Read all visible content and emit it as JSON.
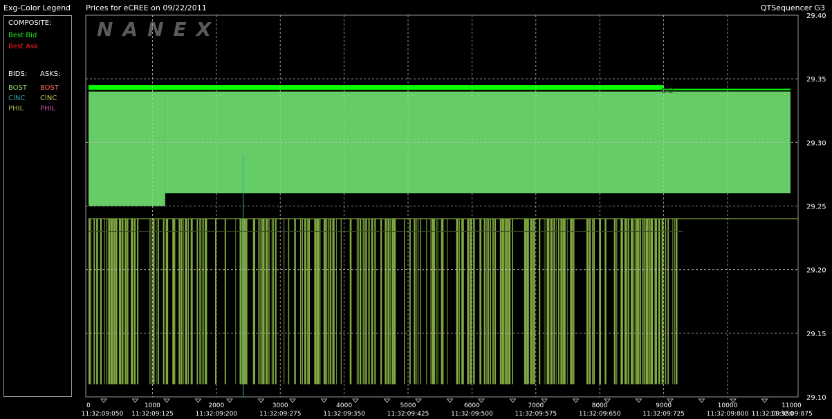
{
  "header": {
    "legend_title": "Exg-Color Legend",
    "chart_title": "Prices for  eCREE  on  09/22/2011",
    "app_name": "QTSequencer G3"
  },
  "watermark": "NANEX",
  "legend": {
    "composite_label": "COMPOSITE:",
    "best_bid": {
      "label": "Best Bid",
      "color": "#22ee22"
    },
    "best_ask": {
      "label": "Best Ask",
      "color": "#ff2020"
    },
    "bids_label": "BIDS:",
    "asks_label": "ASKS:",
    "bids": [
      {
        "label": "BOST",
        "color": "#9fd86c"
      },
      {
        "label": "CINC",
        "color": "#2aa6a6"
      },
      {
        "label": "PHIL",
        "color": "#a8b84c"
      }
    ],
    "asks": [
      {
        "label": "BOST",
        "color": "#ff7060"
      },
      {
        "label": "CINC",
        "color": "#c8c050"
      },
      {
        "label": "PHIL",
        "color": "#d050a0"
      }
    ]
  },
  "chart_data": {
    "type": "area",
    "x_range": [
      0,
      11000
    ],
    "y_range": [
      29.1,
      29.4
    ],
    "y_ticks": [
      "29.40",
      "29.35",
      "29.30",
      "29.25",
      "29.20",
      "29.15",
      "29.10"
    ],
    "x_ticks": [
      {
        "value": 0,
        "label": "0",
        "time": "11:32:09:050"
      },
      {
        "value": 1000,
        "label": "1000",
        "time": "11:32:09:125"
      },
      {
        "value": 2000,
        "label": "2000",
        "time": "11:32:09:200"
      },
      {
        "value": 3000,
        "label": "3000",
        "time": "11:32:09:275"
      },
      {
        "value": 4000,
        "label": "4000",
        "time": "11:32:09:350"
      },
      {
        "value": 5000,
        "label": "5000",
        "time": "11:32:09:425"
      },
      {
        "value": 6000,
        "label": "6000",
        "time": "11:32:09:500"
      },
      {
        "value": 7000,
        "label": "7000",
        "time": "11:32:09:575"
      },
      {
        "value": 8000,
        "label": "8000",
        "time": "11:32:09:650"
      },
      {
        "value": 9000,
        "label": "9000",
        "time": "11:32:09:725"
      },
      {
        "value": 10000,
        "label": "10000",
        "time": "11:32:09:800"
      },
      {
        "value": 11000,
        "label": "11000",
        "time": "11:32:09:875"
      },
      {
        "value": null,
        "label": "",
        "time": "11:32:09:950"
      }
    ],
    "grid": true,
    "series": [
      {
        "name": "Best Bid",
        "color": "#00ff00",
        "segments": [
          {
            "x0": 0,
            "x1": 9000,
            "y": 29.343
          },
          {
            "x0": 9000,
            "x1": 11000,
            "y": 29.34
          }
        ]
      },
      {
        "name": "BOST",
        "color": "#66cc66",
        "bands": [
          {
            "x0": 0,
            "x1": 1200,
            "y_low": 29.25,
            "y_high": 29.34
          },
          {
            "x0": 1200,
            "x1": 11000,
            "y_low": 29.26,
            "y_high": 29.34
          }
        ]
      },
      {
        "name": "CINC",
        "color": "#2aa6a6",
        "spike": {
          "x": 2420,
          "y_low": 29.1,
          "y_high": 29.29
        }
      },
      {
        "name": "PHIL",
        "color": "#80a840",
        "level_high": 29.24,
        "level_low": 29.11,
        "x_end": 9300,
        "reference_line": 29.24
      }
    ]
  }
}
